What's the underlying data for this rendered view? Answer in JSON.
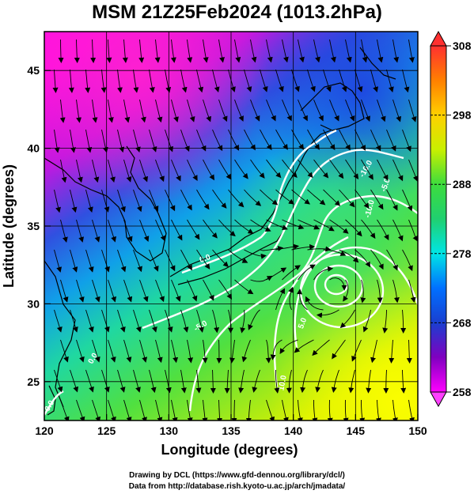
{
  "title": "MSM 21Z25Feb2024 (1013.2hPa)",
  "xaxis": {
    "label": "Longitude (degrees)",
    "range": [
      120,
      150
    ],
    "ticks": [
      120,
      125,
      130,
      135,
      140,
      145,
      150
    ]
  },
  "yaxis": {
    "label": "Latitude  (degrees)",
    "range": [
      22.5,
      47.5
    ],
    "ticks": [
      25,
      30,
      35,
      40,
      45
    ]
  },
  "colorbar": {
    "range": [
      258,
      308
    ],
    "ticks": [
      258,
      268,
      278,
      288,
      298,
      308
    ]
  },
  "contour_labels": [
    "-10.0",
    "-5.0",
    "-10.0",
    "0.0",
    "5.0",
    "10.0",
    "-5.0",
    "0.0",
    "0.0"
  ],
  "footer": {
    "line1": "Drawing by DCL (https://www.gfd-dennou.org/library/dcl/)",
    "line2": "Data from http://database.rish.kyoto-u.ac.jp/arch/jmadata/"
  },
  "colors": {
    "cold": "#ff00ff",
    "cool": "#1a3fd0",
    "mid": "#00e5e5",
    "warm": "#3ddc3d",
    "hot": "#ffd000",
    "max": "#ff3030",
    "contour": "#ffffff"
  }
}
